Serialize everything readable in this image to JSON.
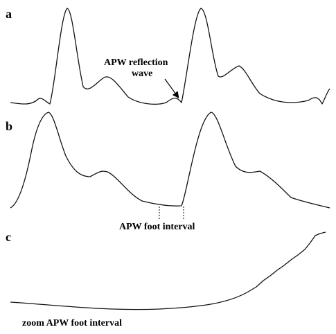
{
  "panels": [
    {
      "label": "a",
      "annotation": [
        "APW reflection",
        "wave"
      ]
    },
    {
      "label": "b",
      "annotation": [
        "APW foot interval"
      ]
    },
    {
      "label": "c",
      "annotation": [
        "zoom APW foot interval"
      ]
    }
  ]
}
